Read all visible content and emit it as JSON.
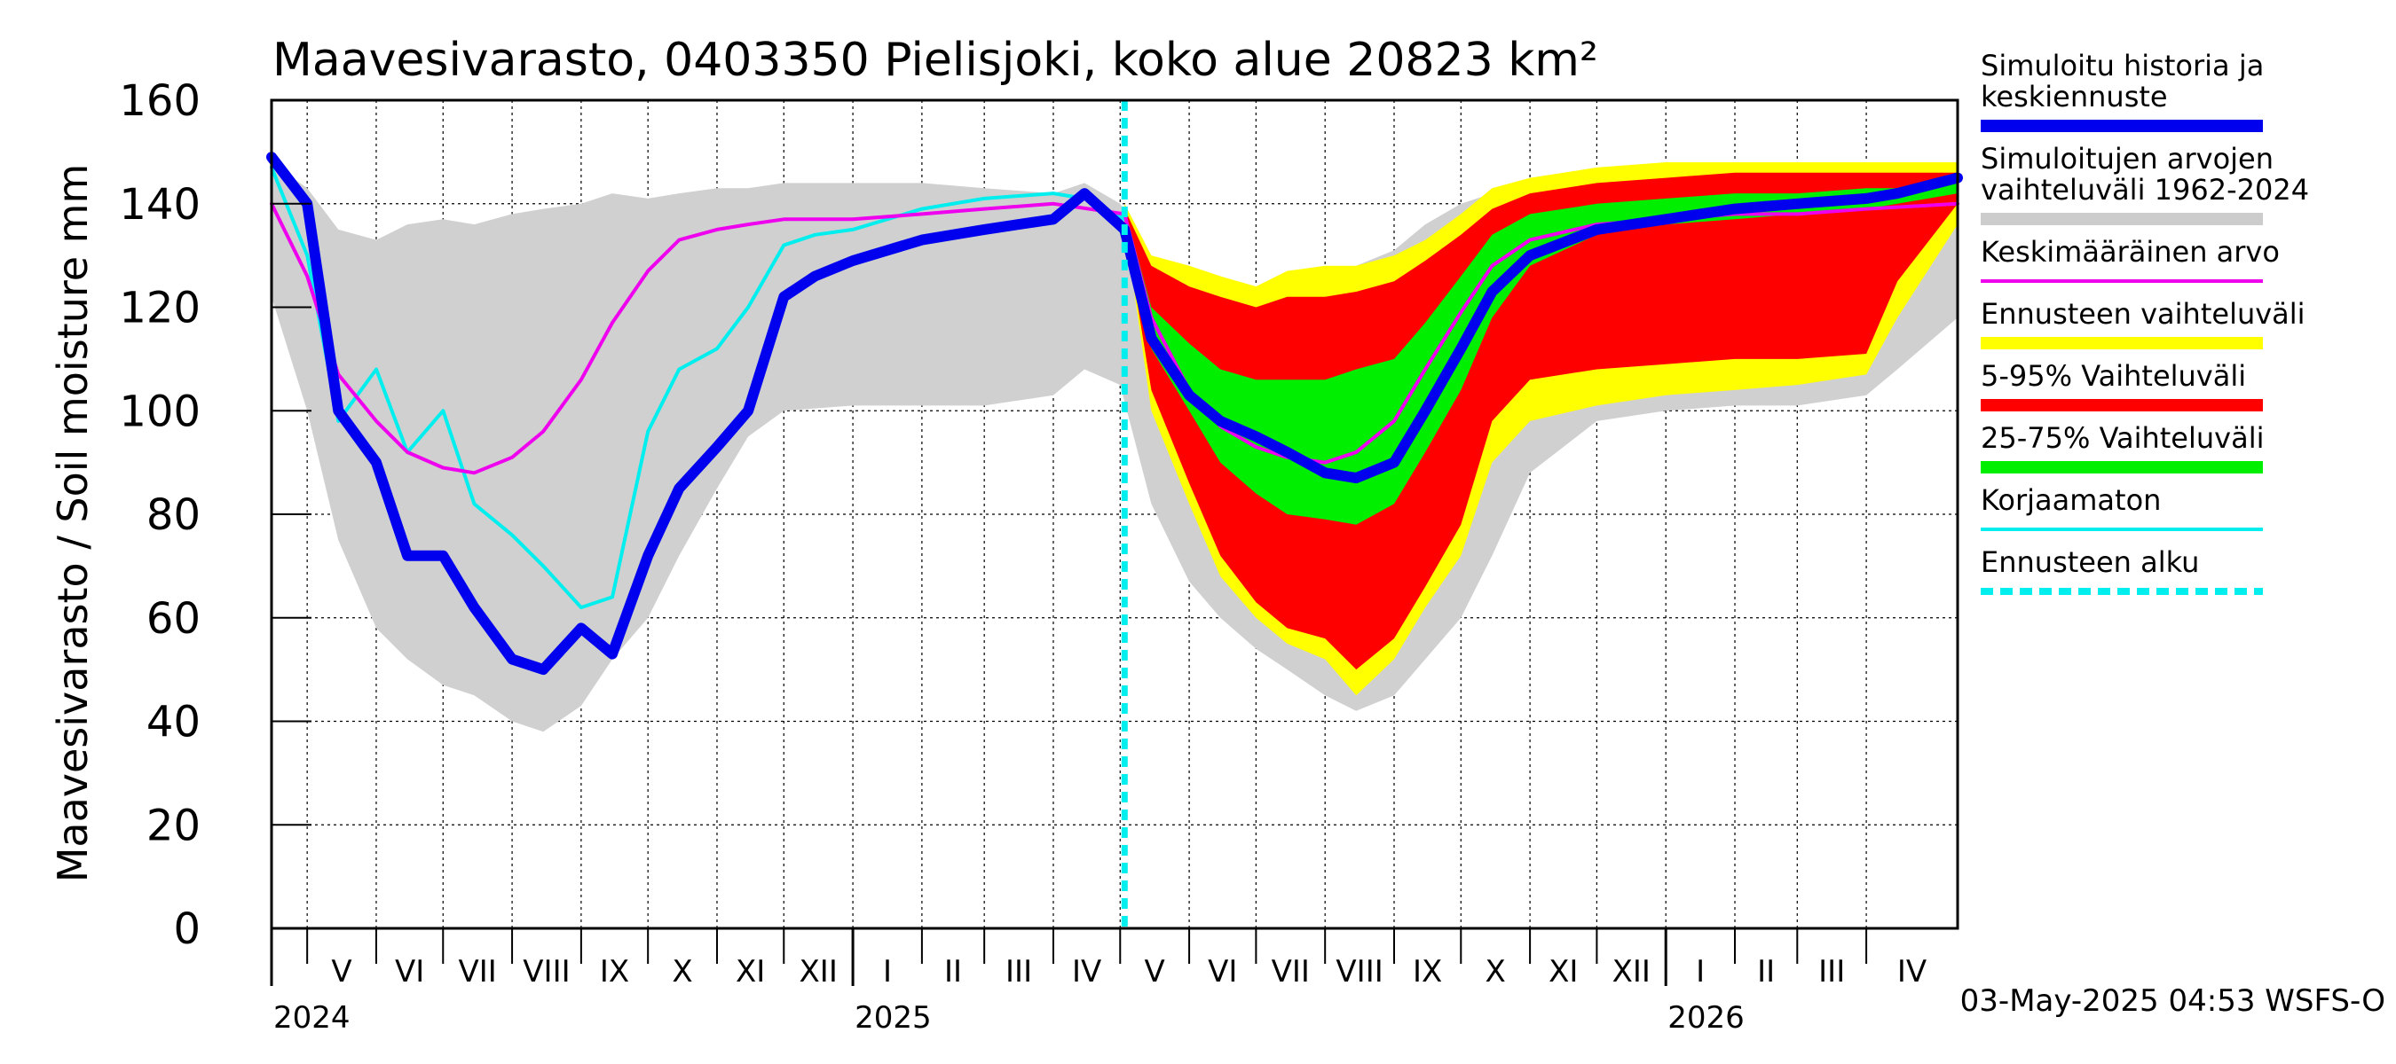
{
  "chart_data": {
    "type": "line",
    "title": "Maavesivarasto, 0403350 Pielisjoki, koko alue 20823 km²",
    "ylabel": "Maavesivarasto / Soil moisture   mm",
    "ylim": [
      0,
      160
    ],
    "yticks": [
      0,
      20,
      40,
      60,
      80,
      100,
      120,
      140,
      160
    ],
    "x_start": "2024-04-15",
    "x_end": "2026-05-12",
    "forecast_start": "2025-05-03",
    "months": [
      {
        "label": "V",
        "start": "2024-05-01"
      },
      {
        "label": "VI",
        "start": "2024-06-01"
      },
      {
        "label": "VII",
        "start": "2024-07-01"
      },
      {
        "label": "VIII",
        "start": "2024-08-01"
      },
      {
        "label": "IX",
        "start": "2024-09-01"
      },
      {
        "label": "X",
        "start": "2024-10-01"
      },
      {
        "label": "XI",
        "start": "2024-11-01"
      },
      {
        "label": "XII",
        "start": "2024-12-01"
      },
      {
        "label": "I",
        "start": "2025-01-01"
      },
      {
        "label": "II",
        "start": "2025-02-01"
      },
      {
        "label": "III",
        "start": "2025-03-01"
      },
      {
        "label": "IV",
        "start": "2025-04-01"
      },
      {
        "label": "V",
        "start": "2025-05-01"
      },
      {
        "label": "VI",
        "start": "2025-06-01"
      },
      {
        "label": "VII",
        "start": "2025-07-01"
      },
      {
        "label": "VIII",
        "start": "2025-08-01"
      },
      {
        "label": "IX",
        "start": "2025-09-01"
      },
      {
        "label": "X",
        "start": "2025-10-01"
      },
      {
        "label": "XI",
        "start": "2025-11-01"
      },
      {
        "label": "XII",
        "start": "2025-12-01"
      },
      {
        "label": "I",
        "start": "2026-01-01"
      },
      {
        "label": "II",
        "start": "2026-02-01"
      },
      {
        "label": "III",
        "start": "2026-03-01"
      },
      {
        "label": "IV",
        "start": "2026-04-01"
      }
    ],
    "years": [
      {
        "label": "2024",
        "date": "2024-04-15"
      },
      {
        "label": "2025",
        "date": "2025-01-01"
      },
      {
        "label": "2026",
        "date": "2026-01-01"
      }
    ],
    "historical_range": {
      "x": [
        "2024-04-15",
        "2024-05-01",
        "2024-05-15",
        "2024-06-01",
        "2024-06-15",
        "2024-07-01",
        "2024-07-15",
        "2024-08-01",
        "2024-08-15",
        "2024-09-01",
        "2024-09-15",
        "2024-10-01",
        "2024-10-15",
        "2024-11-01",
        "2024-11-15",
        "2024-12-01",
        "2025-01-01",
        "2025-02-01",
        "2025-03-01",
        "2025-04-01",
        "2025-04-15",
        "2025-05-01",
        "2025-05-15",
        "2025-06-01",
        "2025-06-15",
        "2025-07-01",
        "2025-07-15",
        "2025-08-01",
        "2025-08-15",
        "2025-09-01",
        "2025-09-15",
        "2025-10-01",
        "2025-10-15",
        "2025-11-01",
        "2025-12-01",
        "2026-01-01",
        "2026-02-01",
        "2026-03-01",
        "2026-04-01",
        "2026-04-15",
        "2026-05-12"
      ],
      "low": [
        122,
        100,
        75,
        58,
        52,
        47,
        45,
        40,
        38,
        43,
        52,
        60,
        72,
        85,
        95,
        100,
        101,
        101,
        101,
        103,
        108,
        105,
        82,
        67,
        60,
        54,
        50,
        45,
        42,
        45,
        52,
        60,
        72,
        88,
        98,
        100,
        101,
        101,
        103,
        108,
        118
      ],
      "high": [
        148,
        143,
        135,
        133,
        136,
        137,
        136,
        138,
        139,
        140,
        142,
        141,
        142,
        143,
        143,
        144,
        144,
        144,
        143,
        142,
        144,
        140,
        130,
        122,
        122,
        124,
        126,
        126,
        128,
        131,
        136,
        140,
        142,
        144,
        145,
        145,
        145,
        145,
        146,
        146,
        147
      ]
    },
    "series": [
      {
        "name": "Ennusteen vaihteluväli",
        "x": [
          "2025-05-03",
          "2025-05-15",
          "2025-06-01",
          "2025-06-15",
          "2025-07-01",
          "2025-07-15",
          "2025-08-01",
          "2025-08-15",
          "2025-09-01",
          "2025-09-15",
          "2025-10-01",
          "2025-10-15",
          "2025-11-01",
          "2025-12-01",
          "2026-01-01",
          "2026-02-01",
          "2026-03-01",
          "2026-04-01",
          "2026-04-15",
          "2026-05-12"
        ],
        "low": [
          136,
          100,
          82,
          68,
          60,
          55,
          52,
          45,
          52,
          62,
          72,
          90,
          98,
          101,
          103,
          104,
          105,
          107,
          118,
          136
        ],
        "high": [
          140,
          130,
          128,
          126,
          124,
          127,
          128,
          128,
          130,
          133,
          138,
          143,
          145,
          147,
          148,
          148,
          148,
          148,
          148,
          148
        ]
      },
      {
        "name": "5-95% Vaihteluväli",
        "x": [
          "2025-05-03",
          "2025-05-15",
          "2025-06-01",
          "2025-06-15",
          "2025-07-01",
          "2025-07-15",
          "2025-08-01",
          "2025-08-15",
          "2025-09-01",
          "2025-09-15",
          "2025-10-01",
          "2025-10-15",
          "2025-11-01",
          "2025-12-01",
          "2026-01-01",
          "2026-02-01",
          "2026-03-01",
          "2026-04-01",
          "2026-04-15",
          "2026-05-12"
        ],
        "low": [
          136,
          104,
          86,
          72,
          63,
          58,
          56,
          50,
          56,
          66,
          78,
          98,
          106,
          108,
          109,
          110,
          110,
          111,
          125,
          140
        ],
        "high": [
          139,
          128,
          124,
          122,
          120,
          122,
          122,
          123,
          125,
          129,
          134,
          139,
          142,
          144,
          145,
          146,
          146,
          146,
          146,
          146
        ]
      },
      {
        "name": "25-75% Vaihteluväli",
        "x": [
          "2025-05-03",
          "2025-05-15",
          "2025-06-01",
          "2025-06-15",
          "2025-07-01",
          "2025-07-15",
          "2025-08-01",
          "2025-08-15",
          "2025-09-01",
          "2025-09-15",
          "2025-10-01",
          "2025-10-15",
          "2025-11-01",
          "2025-12-01",
          "2026-01-01",
          "2026-02-01",
          "2026-03-01",
          "2026-04-01",
          "2026-04-15",
          "2026-05-12"
        ],
        "low": [
          137,
          112,
          100,
          90,
          84,
          80,
          79,
          78,
          82,
          92,
          104,
          118,
          128,
          134,
          136,
          137,
          138,
          139,
          140,
          142
        ],
        "high": [
          139,
          120,
          113,
          108,
          106,
          106,
          106,
          108,
          110,
          117,
          126,
          134,
          138,
          140,
          141,
          142,
          142,
          143,
          143,
          144
        ]
      },
      {
        "name": "Simuloitu historia ja keskiennuste",
        "x": [
          "2024-04-15",
          "2024-05-01",
          "2024-05-15",
          "2024-06-01",
          "2024-06-15",
          "2024-07-01",
          "2024-07-15",
          "2024-08-01",
          "2024-08-15",
          "2024-09-01",
          "2024-09-15",
          "2024-10-01",
          "2024-10-15",
          "2024-11-01",
          "2024-11-15",
          "2024-12-01",
          "2024-12-15",
          "2025-01-01",
          "2025-02-01",
          "2025-03-01",
          "2025-04-01",
          "2025-04-15",
          "2025-05-03",
          "2025-05-15",
          "2025-06-01",
          "2025-06-15",
          "2025-07-01",
          "2025-07-15",
          "2025-08-01",
          "2025-08-15",
          "2025-09-01",
          "2025-09-15",
          "2025-10-01",
          "2025-10-15",
          "2025-11-01",
          "2025-12-01",
          "2026-01-01",
          "2026-02-01",
          "2026-03-01",
          "2026-04-01",
          "2026-04-15",
          "2026-05-12"
        ],
        "y": [
          149,
          140,
          100,
          90,
          72,
          72,
          62,
          52,
          50,
          58,
          53,
          72,
          85,
          93,
          100,
          122,
          126,
          129,
          133,
          135,
          137,
          142,
          135,
          114,
          103,
          98,
          95,
          92,
          88,
          87,
          90,
          100,
          112,
          123,
          130,
          135,
          137,
          139,
          140,
          141,
          142,
          145
        ]
      },
      {
        "name": "Keskimääräinen arvo",
        "x": [
          "2024-04-15",
          "2024-05-01",
          "2024-05-15",
          "2024-06-01",
          "2024-06-15",
          "2024-07-01",
          "2024-07-15",
          "2024-08-01",
          "2024-08-15",
          "2024-09-01",
          "2024-09-15",
          "2024-10-01",
          "2024-10-15",
          "2024-11-01",
          "2024-11-15",
          "2024-12-01",
          "2025-01-01",
          "2025-02-01",
          "2025-03-01",
          "2025-04-01",
          "2025-05-03",
          "2025-05-15",
          "2025-06-01",
          "2025-06-15",
          "2025-07-01",
          "2025-07-15",
          "2025-08-01",
          "2025-08-15",
          "2025-09-01",
          "2025-09-15",
          "2025-10-01",
          "2025-10-15",
          "2025-11-01",
          "2025-12-01",
          "2026-01-01",
          "2026-02-01",
          "2026-03-01",
          "2026-04-01",
          "2026-05-12"
        ],
        "y": [
          140,
          126,
          107,
          98,
          92,
          89,
          88,
          91,
          96,
          106,
          117,
          127,
          133,
          135,
          136,
          137,
          137,
          138,
          139,
          140,
          138,
          118,
          104,
          97,
          93,
          91,
          90,
          92,
          98,
          108,
          119,
          128,
          133,
          136,
          137,
          138,
          138,
          139,
          140
        ]
      },
      {
        "name": "Korjaamaton",
        "x": [
          "2024-04-15",
          "2024-05-01",
          "2024-05-15",
          "2024-06-01",
          "2024-06-15",
          "2024-07-01",
          "2024-07-15",
          "2024-08-01",
          "2024-08-15",
          "2024-09-01",
          "2024-09-15",
          "2024-10-01",
          "2024-10-15",
          "2024-11-01",
          "2024-11-15",
          "2024-12-01",
          "2024-12-15",
          "2025-01-01",
          "2025-02-01",
          "2025-03-01",
          "2025-04-01",
          "2025-04-15",
          "2025-05-03"
        ],
        "y": [
          147,
          130,
          98,
          108,
          92,
          100,
          82,
          76,
          70,
          62,
          64,
          96,
          108,
          112,
          120,
          132,
          134,
          135,
          139,
          141,
          142,
          141,
          137
        ]
      }
    ]
  },
  "legend": [
    {
      "label": "Simuloitu historia ja keskiennuste",
      "color": "#0000ee",
      "style": "thick"
    },
    {
      "label": "Simuloitujen arvojen vaihteluväli 1962-2024",
      "color": "#cccccc",
      "style": "thick"
    },
    {
      "label": "Keskimääräinen arvo",
      "color": "#ee00ee",
      "style": "thin"
    },
    {
      "label": "Ennusteen vaihteluväli",
      "color": "#ffff00",
      "style": "thick"
    },
    {
      "label": "5-95% Vaihteluväli",
      "color": "#ff0000",
      "style": "thick"
    },
    {
      "label": "25-75% Vaihteluväli",
      "color": "#00ee00",
      "style": "thick"
    },
    {
      "label": "Korjaamaton",
      "color": "#00eeee",
      "style": "thin"
    },
    {
      "label": "Ennusteen alku",
      "color": "#00eeee",
      "style": "dashed"
    }
  ],
  "colors": {
    "historical_range": "#d0d0d0",
    "forecast_range": "#ffff00",
    "range_5_95": "#ff0000",
    "range_25_75": "#00ee00",
    "mean": "#ee00ee",
    "uncorrected": "#00eeee",
    "simulated": "#0000ee",
    "forecast_start": "#00eeee"
  },
  "footer": "03-May-2025 04:53 WSFS-O"
}
